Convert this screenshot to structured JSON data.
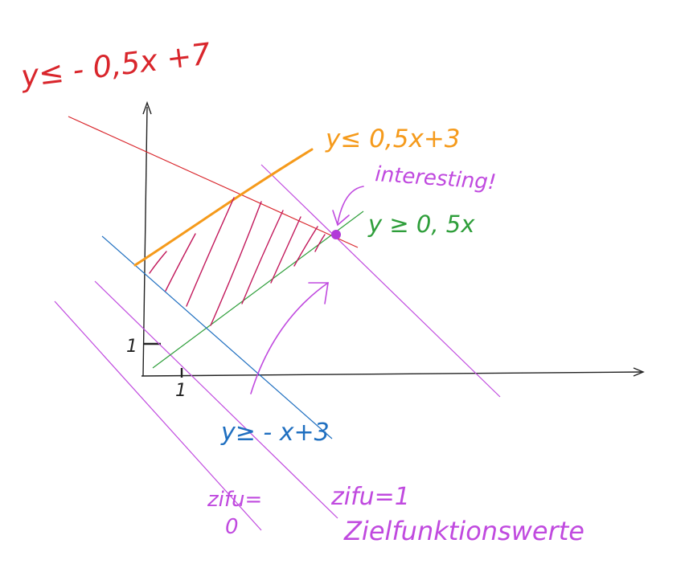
{
  "colors": {
    "red": "#d9262c",
    "orange": "#f59a1b",
    "green": "#2e9e3a",
    "blue": "#1f6fc0",
    "violet": "#c04adf",
    "crimson": "#c2185b",
    "axis": "#222222"
  },
  "labels": {
    "red_ineq": "y≤ - 0,5x +7",
    "orange_ineq": "y≤ 0,5x+3",
    "green_ineq": "y ≥ 0, 5x",
    "blue_ineq": "y≥ - x+3",
    "interesting": "interesting!",
    "tick_x": "1",
    "tick_y": "1",
    "zifu0_line1": "zifu=",
    "zifu0_line2": "0",
    "zifu1": "zifu=1",
    "zielfunktion": "Zielfunktionswerte"
  },
  "icons": {
    "point": "filled-circle",
    "arrows": [
      "curved-arrow-up-right",
      "curved-arrow-to-point"
    ]
  }
}
